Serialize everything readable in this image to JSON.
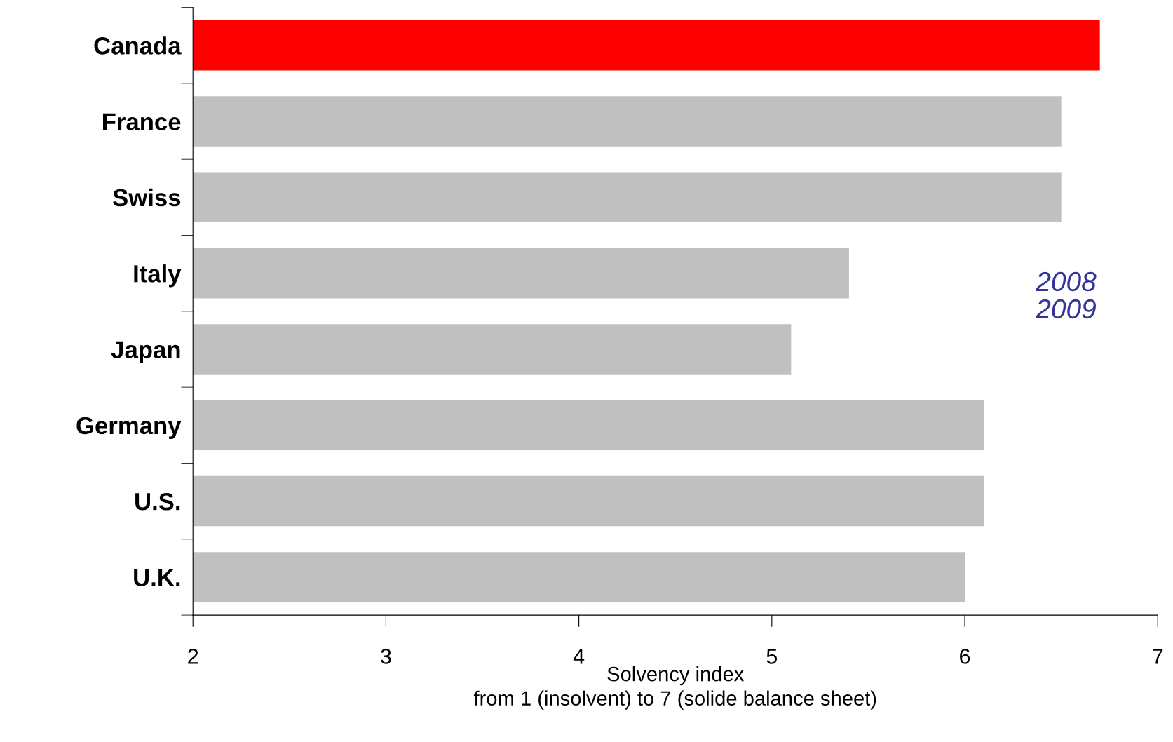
{
  "chart_data": {
    "type": "bar",
    "orientation": "horizontal",
    "categories": [
      "Canada",
      "France",
      "Swiss",
      "Italy",
      "Japan",
      "Germany",
      "U.S.",
      "U.K."
    ],
    "values": [
      6.7,
      6.5,
      6.5,
      5.4,
      5.1,
      6.1,
      6.1,
      6.0
    ],
    "colors": [
      "#ff0000",
      "#c0c0c0",
      "#c0c0c0",
      "#c0c0c0",
      "#c0c0c0",
      "#c0c0c0",
      "#c0c0c0",
      "#c0c0c0"
    ],
    "xlim": [
      2,
      7
    ],
    "xticks": [
      2,
      3,
      4,
      5,
      6,
      7
    ],
    "xlabel": "Solvency index\nfrom 1 (insolvent) to 7 (solide balance sheet)",
    "annotations": [
      "2008",
      "2009"
    ],
    "grid": false,
    "legend": false
  }
}
